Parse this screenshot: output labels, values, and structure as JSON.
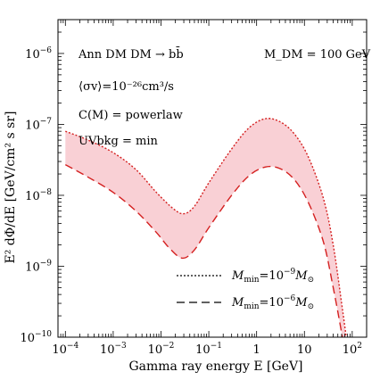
{
  "chart_data": {
    "type": "line",
    "title": "",
    "xlabel": "Gamma ray energy E [GeV]",
    "ylabel": "E² dΦ/dE [GeV/cm² s sr]",
    "x_scale": "log",
    "y_scale": "log",
    "xlim": [
      7e-05,
      200
    ],
    "ylim": [
      1e-10,
      3e-06
    ],
    "x_ticks": [
      {
        "value": 0.0001,
        "base": "10",
        "exp": "−4"
      },
      {
        "value": 0.001,
        "base": "10",
        "exp": "−3"
      },
      {
        "value": 0.01,
        "base": "10",
        "exp": "−2"
      },
      {
        "value": 0.1,
        "base": "10",
        "exp": "−1"
      },
      {
        "value": 1,
        "base": "1",
        "exp": ""
      },
      {
        "value": 10,
        "base": "10",
        "exp": ""
      },
      {
        "value": 100,
        "base": "10",
        "exp": "2"
      }
    ],
    "y_ticks": [
      {
        "value": 1e-10,
        "base": "10",
        "exp": "−10"
      },
      {
        "value": 1e-09,
        "base": "10",
        "exp": "−9"
      },
      {
        "value": 1e-08,
        "base": "10",
        "exp": "−8"
      },
      {
        "value": 1e-07,
        "base": "10",
        "exp": "−7"
      },
      {
        "value": 1e-06,
        "base": "10",
        "exp": "−6"
      }
    ],
    "annotations": {
      "line1": "Ann DM DM → bb̄",
      "line2": "⟨σv⟩=10⁻²⁶cm³/s",
      "line3": "C(M) = powerlaw",
      "line4": "UVbkg = min",
      "mass": "M_DM = 100 GeV"
    },
    "band_color": "#f9d0d5",
    "series": [
      {
        "name": "M_min=10⁻⁹M_⊙",
        "style": "dotted",
        "color": "#d42020",
        "points": [
          [
            0.0001,
            8e-08
          ],
          [
            0.0003,
            6e-08
          ],
          [
            0.001,
            4e-08
          ],
          [
            0.003,
            2.3e-08
          ],
          [
            0.008,
            1.1e-08
          ],
          [
            0.018,
            6.5e-09
          ],
          [
            0.03,
            5.5e-09
          ],
          [
            0.05,
            7e-09
          ],
          [
            0.1,
            1.5e-08
          ],
          [
            0.3,
            4.5e-08
          ],
          [
            0.7,
            9e-08
          ],
          [
            1.5,
            1.2e-07
          ],
          [
            3,
            1.1e-07
          ],
          [
            6,
            7.5e-08
          ],
          [
            12,
            3.5e-08
          ],
          [
            25,
            9e-09
          ],
          [
            40,
            2e-09
          ],
          [
            60,
            3e-10
          ],
          [
            75,
            1e-10
          ]
        ]
      },
      {
        "name": "M_min=10⁻⁶M_⊙",
        "style": "dashed",
        "color": "#d42020",
        "points": [
          [
            0.0001,
            2.7e-08
          ],
          [
            0.0003,
            1.8e-08
          ],
          [
            0.001,
            1.1e-08
          ],
          [
            0.003,
            6e-09
          ],
          [
            0.008,
            3e-09
          ],
          [
            0.015,
            1.8e-09
          ],
          [
            0.028,
            1.3e-09
          ],
          [
            0.05,
            1.7e-09
          ],
          [
            0.1,
            3.5e-09
          ],
          [
            0.3,
            1e-08
          ],
          [
            0.7,
            1.9e-08
          ],
          [
            1.5,
            2.5e-08
          ],
          [
            3,
            2.4e-08
          ],
          [
            6,
            1.7e-08
          ],
          [
            12,
            8e-09
          ],
          [
            25,
            2.2e-09
          ],
          [
            40,
            5e-10
          ],
          [
            55,
            1.6e-10
          ],
          [
            62,
            1e-10
          ]
        ]
      }
    ],
    "legend": {
      "position": "bottom-right",
      "dotted": {
        "base": "M",
        "sub": "min",
        "mid": "=10",
        "exp": "−9",
        "tail": "M",
        "tail_sub": "⊙"
      },
      "dashed": {
        "base": "M",
        "sub": "min",
        "mid": "=10",
        "exp": "−6",
        "tail": "M",
        "tail_sub": "⊙"
      }
    }
  }
}
